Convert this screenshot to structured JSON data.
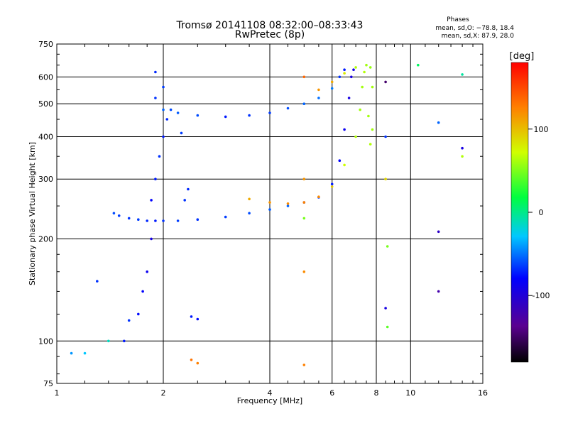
{
  "chart_data": {
    "type": "scatter",
    "title": "Tromsø 20141108 08:32:00–08:33:43",
    "subtitle": "RwPretec (8p)",
    "xlabel": "Frequency [MHz]",
    "ylabel": "Stationary phase Virtual Height [km]",
    "x_scale": "log",
    "y_scale": "log",
    "xlim": [
      1,
      16
    ],
    "ylim": [
      75,
      750
    ],
    "x_ticks": [
      1,
      2,
      4,
      6,
      8,
      10,
      16
    ],
    "y_ticks": [
      75,
      100,
      200,
      300,
      400,
      500,
      600,
      750
    ],
    "grid": true,
    "legend": {
      "title": "Phases",
      "line1": "mean, sd,O: −78.8, 18.4",
      "line2": "mean, sd,X:  87.9, 28.0"
    },
    "colorbar": {
      "label": "[deg]",
      "range": [
        -180,
        180
      ],
      "ticks": [
        100,
        0,
        -100
      ],
      "colormap": "rainbow"
    },
    "series": [
      {
        "points": [
          [
            1.45,
            238,
            -85
          ],
          [
            1.5,
            234,
            -88
          ],
          [
            1.6,
            230,
            -90
          ],
          [
            1.7,
            228,
            -88
          ],
          [
            1.8,
            226,
            -92
          ],
          [
            1.9,
            226,
            -95
          ],
          [
            2.0,
            226,
            -90
          ],
          [
            2.2,
            226,
            -88
          ],
          [
            2.5,
            228,
            -90
          ],
          [
            3.0,
            232,
            -88
          ],
          [
            3.5,
            238,
            -85
          ],
          [
            4.0,
            244,
            -82
          ],
          [
            4.5,
            250,
            -80
          ],
          [
            5.0,
            256,
            -85
          ],
          [
            5.5,
            265,
            -90
          ],
          [
            6.0,
            290,
            -95
          ],
          [
            6.3,
            340,
            -100
          ],
          [
            6.5,
            420,
            -105
          ],
          [
            6.7,
            520,
            -110
          ],
          [
            6.8,
            600,
            -112
          ],
          [
            6.9,
            630,
            -108
          ]
        ]
      },
      {
        "points": [
          [
            2.0,
            480,
            -80
          ],
          [
            2.2,
            470,
            -82
          ],
          [
            2.5,
            462,
            -85
          ],
          [
            3.0,
            458,
            -95
          ],
          [
            3.5,
            462,
            -90
          ],
          [
            4.0,
            470,
            -88
          ],
          [
            4.5,
            485,
            -85
          ],
          [
            5.0,
            500,
            -80
          ],
          [
            5.5,
            520,
            -78
          ],
          [
            6.0,
            555,
            -75
          ],
          [
            6.3,
            600,
            -90
          ],
          [
            6.5,
            630,
            -95
          ]
        ]
      },
      {
        "points": [
          [
            3.5,
            262,
            110
          ],
          [
            4.0,
            256,
            120
          ],
          [
            4.5,
            254,
            125
          ],
          [
            5.0,
            256,
            130
          ],
          [
            5.5,
            266,
            125
          ],
          [
            6.0,
            285,
            95
          ],
          [
            6.5,
            330,
            70
          ],
          [
            7.0,
            400,
            60
          ],
          [
            7.2,
            480,
            55
          ],
          [
            7.3,
            560,
            55
          ],
          [
            7.4,
            620,
            60
          ]
        ]
      },
      {
        "points": [
          [
            5.5,
            550,
            120
          ],
          [
            6.0,
            580,
            110
          ],
          [
            6.5,
            615,
            80
          ],
          [
            7.0,
            640,
            60
          ],
          [
            7.5,
            650,
            55
          ],
          [
            7.7,
            640,
            50
          ],
          [
            7.8,
            560,
            55
          ],
          [
            7.6,
            460,
            55
          ],
          [
            7.8,
            420,
            55
          ],
          [
            7.7,
            380,
            60
          ]
        ]
      },
      {
        "points": [
          [
            1.85,
            260,
            -100
          ],
          [
            1.9,
            300,
            -95
          ],
          [
            1.95,
            350,
            -90
          ],
          [
            2.0,
            400,
            -95
          ],
          [
            2.05,
            450,
            -92
          ],
          [
            2.1,
            480,
            -85
          ],
          [
            1.9,
            520,
            -90
          ],
          [
            2.0,
            560,
            -88
          ],
          [
            1.9,
            620,
            -92
          ],
          [
            1.85,
            200,
            -110
          ],
          [
            1.8,
            160,
            -105
          ],
          [
            1.75,
            140,
            -100
          ],
          [
            1.7,
            120,
            -98
          ],
          [
            1.6,
            115,
            -90
          ],
          [
            1.55,
            100,
            -95
          ],
          [
            2.4,
            118,
            -95
          ],
          [
            2.5,
            116,
            -98
          ],
          [
            2.3,
            260,
            -90
          ],
          [
            2.35,
            280,
            -92
          ],
          [
            2.25,
            410,
            -88
          ]
        ]
      },
      {
        "points": [
          [
            5.0,
            600,
            140
          ],
          [
            5.0,
            300,
            120
          ],
          [
            5.0,
            230,
            40
          ],
          [
            5.0,
            160,
            125
          ],
          [
            5.0,
            85,
            130
          ],
          [
            8.5,
            580,
            -150
          ],
          [
            8.5,
            400,
            -90
          ],
          [
            8.5,
            300,
            90
          ],
          [
            8.6,
            190,
            40
          ],
          [
            8.5,
            125,
            -110
          ],
          [
            8.6,
            110,
            30
          ],
          [
            10.5,
            650,
            -10
          ],
          [
            12.0,
            440,
            -80
          ],
          [
            12.0,
            210,
            -120
          ],
          [
            12.0,
            140,
            -130
          ],
          [
            14.0,
            610,
            -30
          ],
          [
            14.0,
            370,
            -110
          ],
          [
            14.0,
            350,
            60
          ],
          [
            1.1,
            92,
            -70
          ],
          [
            1.2,
            92,
            -60
          ],
          [
            1.3,
            150,
            -90
          ],
          [
            1.4,
            100,
            -40
          ],
          [
            2.4,
            88,
            135
          ],
          [
            2.5,
            86,
            130
          ]
        ]
      }
    ]
  }
}
